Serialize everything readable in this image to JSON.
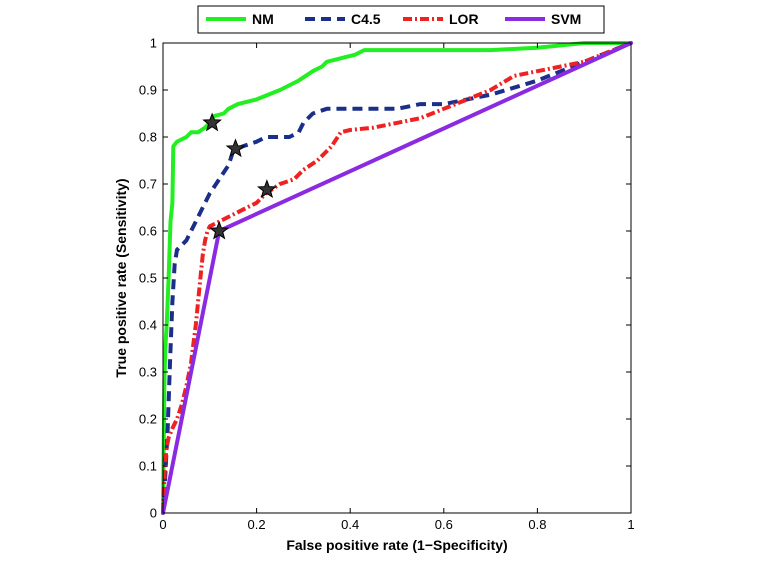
{
  "chart_data": {
    "type": "line",
    "title": "",
    "xlabel": "False positive rate (1−Specificity)",
    "ylabel": "True positive rate (Sensitivity)",
    "xlim": [
      0,
      1
    ],
    "ylim": [
      0,
      1
    ],
    "grid": false,
    "legend_position": "top-outside",
    "x_ticks": [
      0,
      0.2,
      0.4,
      0.6,
      0.8,
      1
    ],
    "x_tick_labels": [
      "0",
      "0.2",
      "0.4",
      "0.6",
      "0.8",
      "1"
    ],
    "y_ticks": [
      0,
      0.1,
      0.2,
      0.3,
      0.4,
      0.5,
      0.6,
      0.7,
      0.8,
      0.9,
      1
    ],
    "y_tick_labels": [
      "0",
      "0.1",
      "0.2",
      "0.3",
      "0.4",
      "0.5",
      "0.6",
      "0.7",
      "0.8",
      "0.9",
      "1"
    ],
    "series": [
      {
        "name": "NM",
        "color": "#22ee22",
        "style": "solid",
        "x": [
          0,
          0.003,
          0.005,
          0.008,
          0.012,
          0.016,
          0.02,
          0.022,
          0.03,
          0.05,
          0.06,
          0.075,
          0.09,
          0.1,
          0.11,
          0.13,
          0.14,
          0.16,
          0.2,
          0.25,
          0.29,
          0.32,
          0.34,
          0.35,
          0.37,
          0.39,
          0.41,
          0.43,
          0.5,
          0.6,
          0.7,
          0.8,
          0.9,
          1.0
        ],
        "y": [
          0,
          0.28,
          0.35,
          0.4,
          0.5,
          0.62,
          0.66,
          0.78,
          0.79,
          0.8,
          0.81,
          0.81,
          0.82,
          0.83,
          0.845,
          0.85,
          0.86,
          0.87,
          0.88,
          0.9,
          0.92,
          0.94,
          0.95,
          0.96,
          0.965,
          0.97,
          0.975,
          0.985,
          0.985,
          0.985,
          0.985,
          0.99,
          1.0,
          1.0
        ]
      },
      {
        "name": "C4.5",
        "color": "#1b2f8a",
        "style": "dashed",
        "x": [
          0,
          0.005,
          0.01,
          0.015,
          0.02,
          0.025,
          0.03,
          0.04,
          0.05,
          0.06,
          0.07,
          0.08,
          0.09,
          0.1,
          0.12,
          0.14,
          0.15,
          0.17,
          0.2,
          0.22,
          0.25,
          0.27,
          0.29,
          0.3,
          0.32,
          0.35,
          0.38,
          0.42,
          0.5,
          0.55,
          0.6,
          0.65,
          0.7,
          0.8,
          0.9,
          1.0
        ],
        "y": [
          0,
          0.08,
          0.18,
          0.32,
          0.45,
          0.53,
          0.56,
          0.57,
          0.58,
          0.6,
          0.62,
          0.64,
          0.66,
          0.68,
          0.71,
          0.74,
          0.77,
          0.78,
          0.79,
          0.8,
          0.8,
          0.8,
          0.81,
          0.83,
          0.85,
          0.86,
          0.86,
          0.86,
          0.86,
          0.87,
          0.87,
          0.88,
          0.89,
          0.92,
          0.96,
          1.0
        ]
      },
      {
        "name": "LOR",
        "color": "#ee2222",
        "style": "dashdot",
        "x": [
          0,
          0.002,
          0.004,
          0.008,
          0.012,
          0.02,
          0.03,
          0.04,
          0.05,
          0.06,
          0.065,
          0.07,
          0.075,
          0.08,
          0.085,
          0.09,
          0.095,
          0.1,
          0.12,
          0.14,
          0.16,
          0.18,
          0.2,
          0.22,
          0.25,
          0.28,
          0.3,
          0.33,
          0.36,
          0.38,
          0.4,
          0.45,
          0.5,
          0.55,
          0.6,
          0.65,
          0.7,
          0.75,
          0.8,
          0.85,
          0.9,
          0.95,
          1.0
        ],
        "y": [
          0,
          0.05,
          0.1,
          0.14,
          0.16,
          0.18,
          0.2,
          0.23,
          0.27,
          0.32,
          0.36,
          0.4,
          0.45,
          0.5,
          0.55,
          0.58,
          0.6,
          0.61,
          0.62,
          0.63,
          0.64,
          0.65,
          0.66,
          0.68,
          0.7,
          0.71,
          0.73,
          0.75,
          0.78,
          0.81,
          0.815,
          0.82,
          0.83,
          0.84,
          0.86,
          0.88,
          0.9,
          0.93,
          0.94,
          0.95,
          0.96,
          0.98,
          1.0
        ]
      },
      {
        "name": "SVM",
        "color": "#8a2be2",
        "style": "solid",
        "x": [
          0,
          0.12,
          1.0
        ],
        "y": [
          0,
          0.6,
          1.0
        ]
      }
    ],
    "markers": [
      {
        "series": "NM",
        "x": 0.105,
        "y": 0.83,
        "symbol": "star"
      },
      {
        "series": "C4.5",
        "x": 0.155,
        "y": 0.775,
        "symbol": "star"
      },
      {
        "series": "LOR",
        "x": 0.222,
        "y": 0.688,
        "symbol": "star"
      },
      {
        "series": "SVM",
        "x": 0.12,
        "y": 0.6,
        "symbol": "star"
      }
    ]
  }
}
